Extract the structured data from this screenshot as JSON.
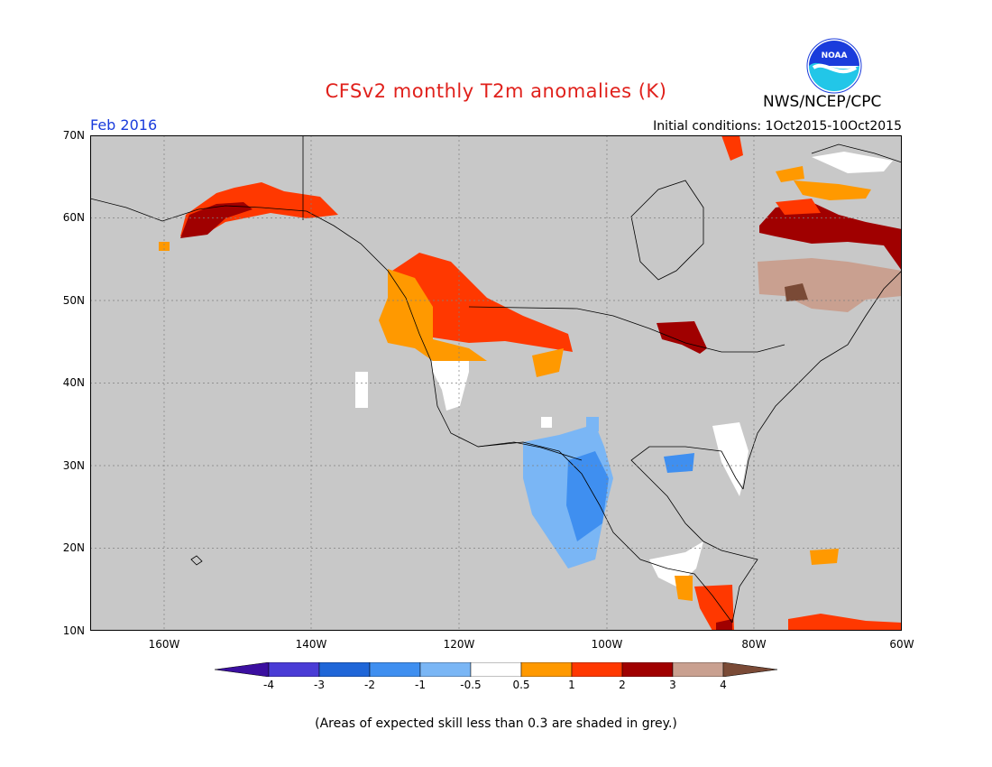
{
  "header": {
    "title": "CFSv2 monthly T2m anomalies (K)",
    "org": "NWS/NCEP/CPC",
    "month": "Feb 2016",
    "initial_conditions": "Initial conditions: 1Oct2015-10Oct2015",
    "logo_text": "NOAA"
  },
  "map": {
    "lat_ticks": [
      "70N",
      "60N",
      "50N",
      "40N",
      "30N",
      "20N",
      "10N"
    ],
    "lon_ticks": [
      "160W",
      "140W",
      "120W",
      "100W",
      "80W",
      "60W"
    ],
    "grey_color": "#c8c8c8"
  },
  "colorbar": {
    "labels": [
      "-4",
      "-3",
      "-2",
      "-1",
      "-0.5",
      "0.5",
      "1",
      "2",
      "3",
      "4"
    ],
    "colors": [
      "#3b0fa0",
      "#4a3cd6",
      "#1f66d8",
      "#3f8ff0",
      "#7ab6f5",
      "#ffffff",
      "#ff9900",
      "#ff3800",
      "#a00000",
      "#c9a090",
      "#7a4a36"
    ]
  },
  "footnote": "(Areas of expected skill less than 0.3 are shaded in grey.)"
}
